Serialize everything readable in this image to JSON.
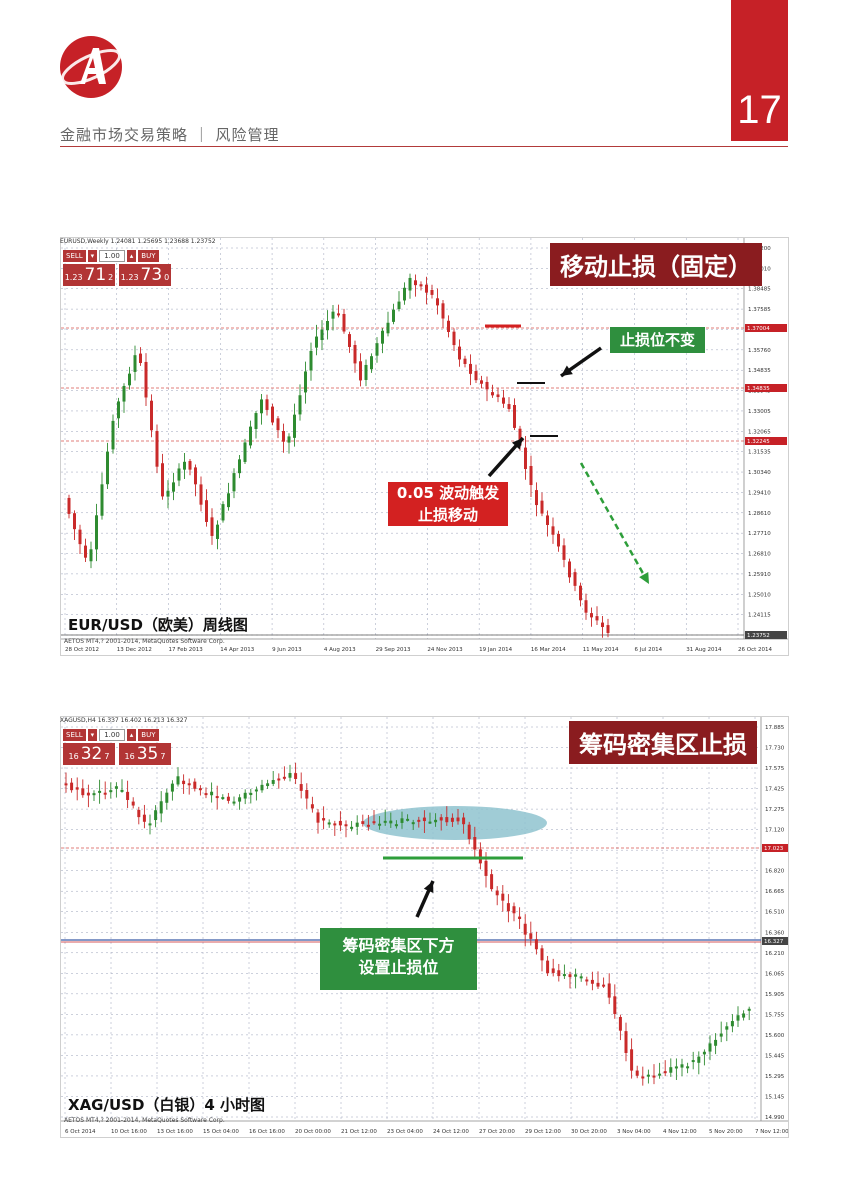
{
  "header": {
    "title": "金融市场交易策略 ｜ 风险管理",
    "page_number": "17"
  },
  "chart1": {
    "window_title": "EURUSD,Weekly  1.24081 1.25695 1.23688 1.23752",
    "title_label": "移动止损（固定）",
    "caption": "EUR/USD（欧美）周线图",
    "footer": "AETOS MT4,? 2001-2014, MetaQuotes Software Corp.",
    "callout_unchanged": "止损位不变",
    "callout_move_line1": "0.05 波动触发",
    "callout_move_line2": "止损移动",
    "trade": {
      "sell": "SELL",
      "buy": "BUY",
      "qty": "1.00",
      "sell_small": "1.23",
      "sell_big": "71",
      "sell_sup": "2",
      "buy_small": "1.23",
      "buy_big": "73",
      "buy_sup": "0"
    },
    "y_ticks": [
      "1.40200",
      "1.39010",
      "1.38485",
      "1.37585",
      "1.36665",
      "1.35760",
      "1.34835",
      "1.33945",
      "1.33005",
      "1.32065",
      "1.31535",
      "1.30340",
      "1.29410",
      "1.28610",
      "1.27710",
      "1.26810",
      "1.25910",
      "1.25010",
      "1.24115",
      "1.23215"
    ],
    "price_tags": [
      "1.37004",
      "1.34835",
      "1.32245",
      "1.23752"
    ],
    "x_ticks": [
      "28 Oct 2012",
      "13 Dec 2012",
      "17 Feb 2013",
      "14 Apr 2013",
      "9 Jun 2013",
      "4 Aug 2013",
      "29 Sep 2013",
      "24 Nov 2013",
      "19 Jan 2014",
      "16 Mar 2014",
      "11 May 2014",
      "6 Jul 2014",
      "31 Aug 2014",
      "26 Oct 2014"
    ],
    "colors": {
      "up": "#2e8b30",
      "down": "#c92a2a",
      "level": "#d9534f",
      "arrow": "#2e9e3a"
    }
  },
  "chart2": {
    "window_title": "XAGUSD,H4  16.337 16.402 16.213 16.327",
    "title_label": "筹码密集区止损",
    "caption": "XAG/USD（白银）4 小时图",
    "footer": "AETOS MT4,? 2001-2014, MetaQuotes Software Corp.",
    "callout_line1": "筹码密集区下方",
    "callout_line2": "设置止损位",
    "trade": {
      "sell": "SELL",
      "buy": "BUY",
      "qty": "1.00",
      "sell_small": "16",
      "sell_big": "32",
      "sell_sup": "7",
      "buy_small": "16",
      "buy_big": "35",
      "buy_sup": "7"
    },
    "y_ticks": [
      "17.885",
      "17.730",
      "17.575",
      "17.425",
      "17.275",
      "17.120",
      "16.970",
      "16.820",
      "16.665",
      "16.510",
      "16.360",
      "16.210",
      "16.065",
      "15.905",
      "15.755",
      "15.600",
      "15.445",
      "15.295",
      "15.145",
      "14.990"
    ],
    "price_tags": [
      "17.023",
      "16.327"
    ],
    "x_ticks": [
      "6 Oct 2014",
      "10 Oct 16:00",
      "13 Oct 16:00",
      "15 Oct 04:00",
      "16 Oct 16:00",
      "20 Oct 00:00",
      "21 Oct 12:00",
      "23 Oct 04:00",
      "24 Oct 12:00",
      "27 Oct 20:00",
      "29 Oct 12:00",
      "30 Oct 20:00",
      "3 Nov 04:00",
      "4 Nov 12:00",
      "5 Nov 20:00",
      "7 Nov 12:00"
    ],
    "colors": {
      "up": "#2e8b30",
      "down": "#c92a2a",
      "zone": "#8fc3cf",
      "support": "#2e9e3a"
    }
  }
}
